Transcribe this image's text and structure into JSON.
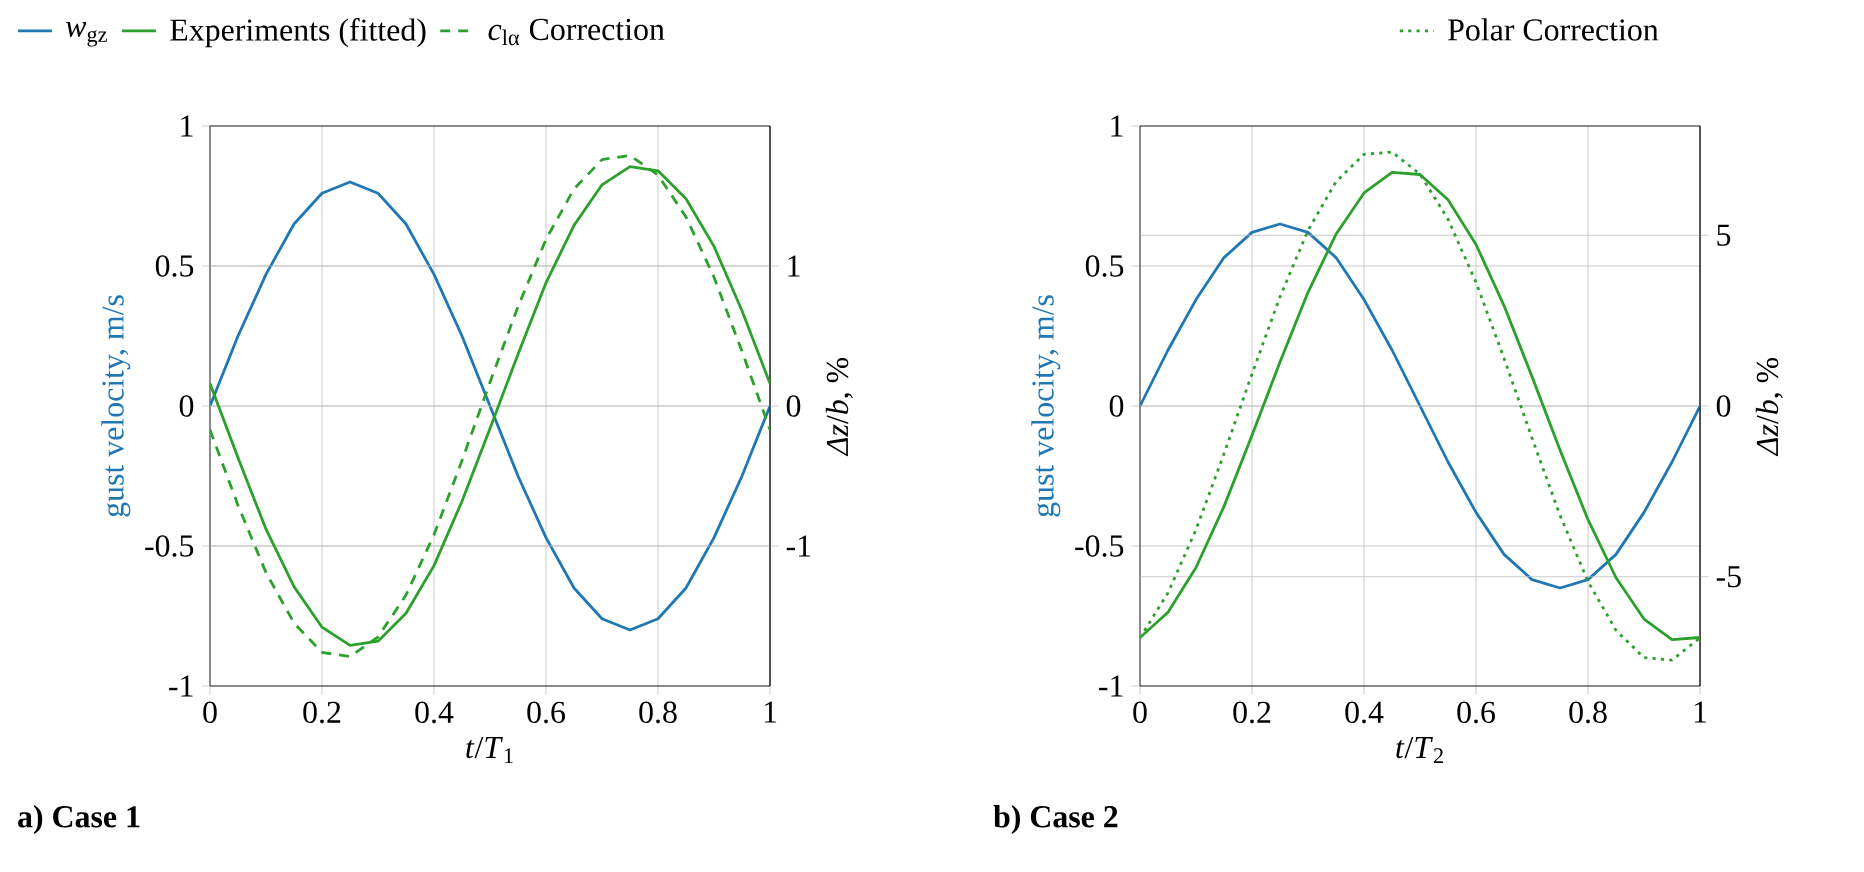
{
  "chart_data": [
    {
      "type": "line",
      "title": "a) Case 1",
      "xlabel": "*t*/*T*$_{1}$",
      "ylabel": "gust velocity, m/s",
      "y2label": "*Δz*/*b*, %",
      "xlim": [
        0,
        1
      ],
      "ylim": [
        -1,
        1
      ],
      "y2lim": [
        -2,
        2
      ],
      "xticks": [
        0,
        0.2,
        0.4,
        0.6,
        0.8,
        1
      ],
      "yticks": [
        -1,
        -0.5,
        0,
        0.5,
        1
      ],
      "y2ticks": [
        -1,
        0,
        1
      ],
      "grid": true,
      "legend": "top",
      "marker": "none",
      "x": [
        0,
        0.05,
        0.1,
        0.15,
        0.2,
        0.25,
        0.3,
        0.35,
        0.4,
        0.45,
        0.5,
        0.55,
        0.6,
        0.65,
        0.7,
        0.75,
        0.8,
        0.85,
        0.9,
        0.95,
        1
      ],
      "series": [
        {
          "name": "*w*$_{gz}$",
          "color": "#1f77b4",
          "line_style": "solid",
          "values": [
            0,
            0.25,
            0.47,
            0.65,
            0.76,
            0.8,
            0.76,
            0.65,
            0.47,
            0.25,
            0,
            -0.25,
            -0.47,
            -0.65,
            -0.76,
            -0.8,
            -0.76,
            -0.65,
            -0.47,
            -0.25,
            0
          ]
        },
        {
          "name": "Experiments (fitted)",
          "color": "#2ca02c",
          "line_style": "solid",
          "axis": "y2",
          "values": [
            0.16,
            -0.37,
            -0.88,
            -1.29,
            -1.58,
            -1.71,
            -1.68,
            -1.48,
            -1.14,
            -0.68,
            -0.16,
            0.37,
            0.88,
            1.29,
            1.58,
            1.71,
            1.68,
            1.48,
            1.14,
            0.68,
            0.16
          ]
        },
        {
          "name": "*c*$_{lα}$ Correction",
          "color": "#2ca02c",
          "line_style": "dashed",
          "axis": "y2",
          "values": [
            -0.17,
            -0.71,
            -1.19,
            -1.55,
            -1.76,
            -1.79,
            -1.65,
            -1.35,
            -0.92,
            -0.39,
            0.17,
            0.71,
            1.19,
            1.55,
            1.76,
            1.79,
            1.65,
            1.35,
            0.92,
            0.39,
            -0.17
          ]
        }
      ]
    },
    {
      "type": "line",
      "title": "b) Case 2",
      "xlabel": "*t*/*T*$_{2}$",
      "ylabel": "gust velocity, m/s",
      "y2label": "*Δz*/*b*, %",
      "xlim": [
        0,
        1
      ],
      "ylim": [
        -1,
        1
      ],
      "y2lim": [
        -8.2,
        8.2
      ],
      "xticks": [
        0,
        0.2,
        0.4,
        0.6,
        0.8,
        1
      ],
      "yticks": [
        -1,
        -0.5,
        0,
        0.5,
        1
      ],
      "y2ticks": [
        -5,
        0,
        5
      ],
      "grid": true,
      "legend": "top",
      "marker": "none",
      "x": [
        0,
        0.05,
        0.1,
        0.15,
        0.2,
        0.25,
        0.3,
        0.35,
        0.4,
        0.45,
        0.5,
        0.55,
        0.6,
        0.65,
        0.7,
        0.75,
        0.8,
        0.85,
        0.9,
        0.95,
        1
      ],
      "series": [
        {
          "color": "#1f77b4",
          "line_style": "solid",
          "values": [
            0,
            0.2,
            0.38,
            0.53,
            0.62,
            0.65,
            0.62,
            0.53,
            0.38,
            0.2,
            0,
            -0.2,
            -0.38,
            -0.53,
            -0.62,
            -0.65,
            -0.62,
            -0.53,
            -0.38,
            -0.2,
            0
          ]
        },
        {
          "color": "#2ca02c",
          "line_style": "solid",
          "axis": "y2",
          "values": [
            -6.78,
            -6.04,
            -4.73,
            -2.94,
            -0.86,
            1.29,
            3.33,
            5.03,
            6.24,
            6.84,
            6.78,
            6.04,
            4.73,
            2.94,
            0.86,
            -1.29,
            -3.33,
            -5.03,
            -6.24,
            -6.84,
            -6.78
          ]
        },
        {
          "name": "Polar Correction",
          "color": "#2ca02c",
          "line_style": "dotted",
          "axis": "y2",
          "values": [
            -6.79,
            -5.47,
            -3.62,
            -1.4,
            0.94,
            3.2,
            5.14,
            6.57,
            7.37,
            7.44,
            6.79,
            5.47,
            3.62,
            1.4,
            -0.94,
            -3.2,
            -5.14,
            -6.57,
            -7.37,
            -7.44,
            -6.79
          ]
        }
      ]
    }
  ]
}
